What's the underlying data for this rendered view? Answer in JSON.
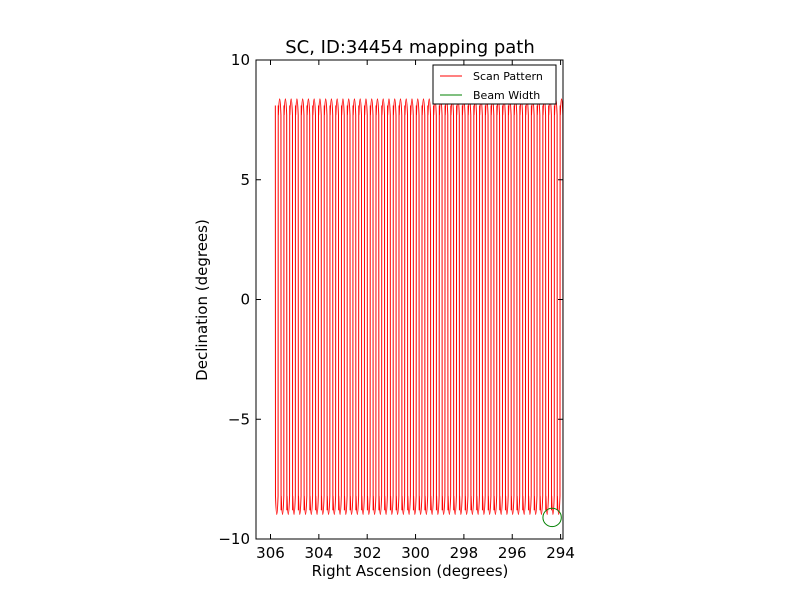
{
  "chart_data": {
    "type": "line",
    "title": "SC, ID:34454 mapping path",
    "xlabel": "Right Ascension (degrees)",
    "ylabel": "Declination (degrees)",
    "xlim": [
      306.6,
      293.9
    ],
    "ylim": [
      -10,
      10
    ],
    "x_inverted": true,
    "xticks": [
      306,
      304,
      302,
      300,
      298,
      296,
      294
    ],
    "xtick_labels": [
      "306",
      "304",
      "302",
      "300",
      "298",
      "296",
      "294"
    ],
    "yticks": [
      10,
      5,
      0,
      -5,
      -10
    ],
    "ytick_labels": [
      "10",
      "5",
      "0",
      "−5",
      "−10"
    ],
    "grid": false,
    "legend_position": "top-right",
    "series": [
      {
        "name": "Scan Pattern",
        "color": "#ff0000",
        "kind": "zigzag-scan",
        "ra_start": 305.8,
        "ra_end": 293.9,
        "dec_top": 8.7,
        "dec_bottom": -9.4,
        "dec_start": 8.1,
        "num_scan_legs": 100
      },
      {
        "name": "Beam Width",
        "color": "#008000",
        "kind": "circle",
        "center_ra": 294.35,
        "center_dec": -9.1,
        "radius_deg": 0.38
      }
    ]
  }
}
